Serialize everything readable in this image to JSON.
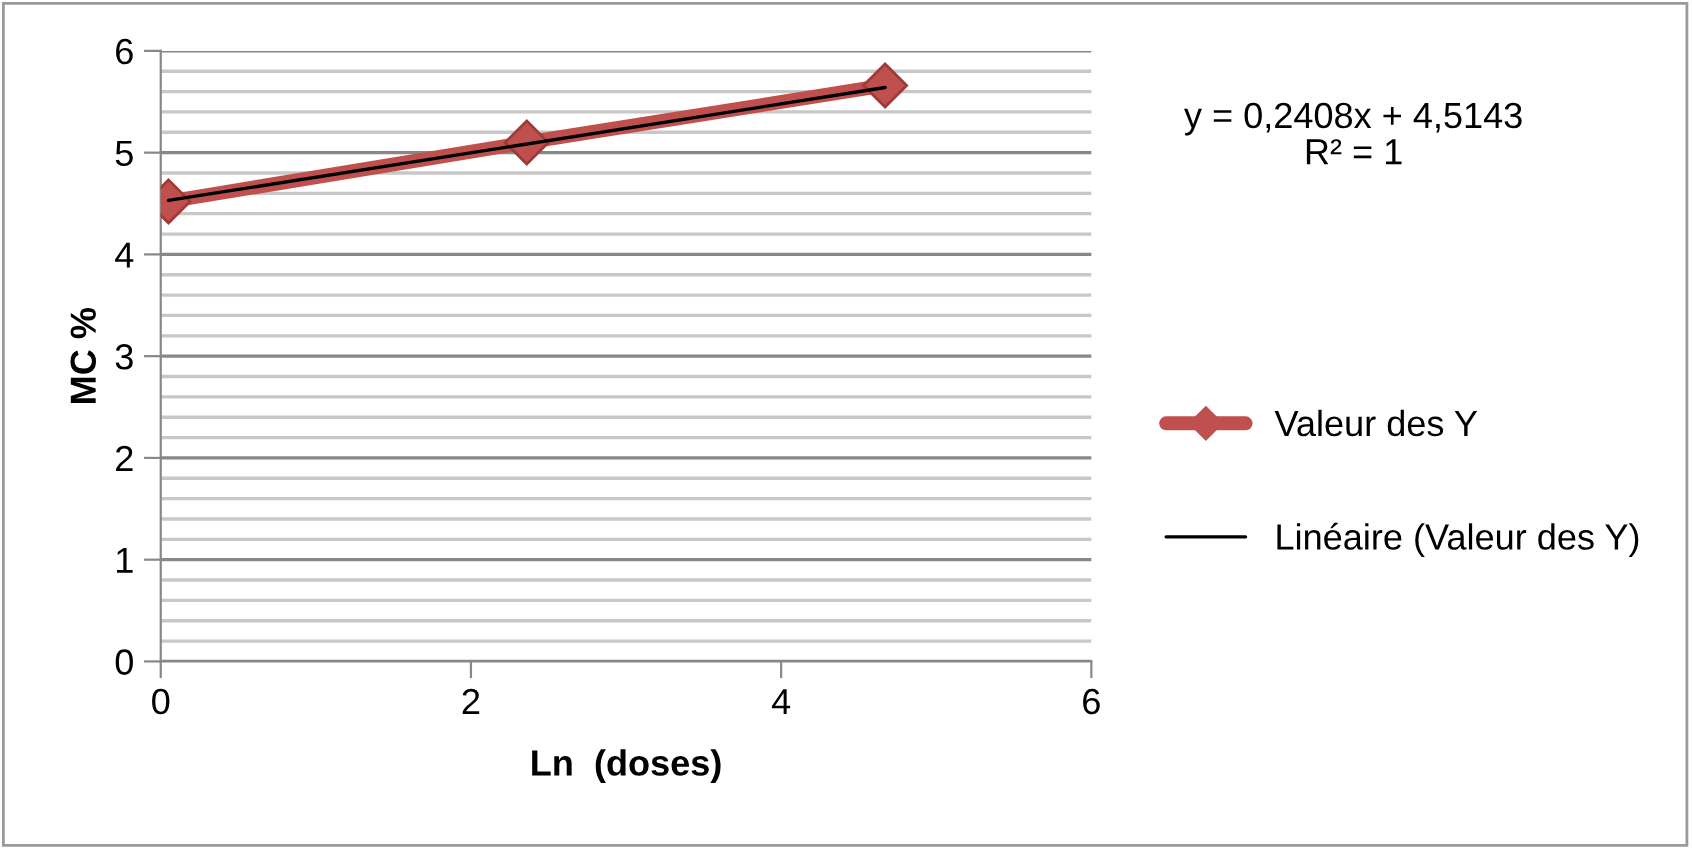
{
  "chart_data": {
    "type": "line",
    "xlabel": "Ln  (doses)",
    "ylabel": "MC %",
    "xlim": [
      0,
      6
    ],
    "xticks": [
      0,
      2,
      4,
      6
    ],
    "ylim": [
      0,
      6
    ],
    "yticks": [
      0,
      {
        "value": 0.2,
        "label": null
      },
      {
        "value": 0.4,
        "label": null
      },
      {
        "value": 0.6,
        "label": null
      },
      {
        "value": 0.8,
        "label": null
      },
      1,
      {
        "value": 1.2,
        "label": null
      },
      {
        "value": 1.4,
        "label": null
      },
      {
        "value": 1.6,
        "label": null
      },
      {
        "value": 1.8,
        "label": null
      },
      2,
      {
        "value": 2.2,
        "label": null
      },
      {
        "value": 2.4,
        "label": null
      },
      {
        "value": 2.6,
        "label": null
      },
      {
        "value": 2.8,
        "label": null
      },
      3,
      {
        "value": 3.2,
        "label": null
      },
      {
        "value": 3.4,
        "label": null
      },
      {
        "value": 3.6,
        "label": null
      },
      {
        "value": 3.8,
        "label": null
      },
      4,
      {
        "value": 4.2,
        "label": null
      },
      {
        "value": 4.4,
        "label": null
      },
      {
        "value": 4.6,
        "label": null
      },
      {
        "value": 4.8,
        "label": null
      },
      5,
      {
        "value": 5.2,
        "label": null
      },
      {
        "value": 5.4,
        "label": null
      },
      {
        "value": 5.6,
        "label": null
      },
      {
        "value": 5.8,
        "label": null
      },
      6
    ],
    "grid": "y",
    "legend": "right",
    "annotations": [
      "y = 0,2408x + 4,5143\nR² = 1"
    ],
    "series": [
      {
        "name": "Valeur des Y",
        "color": "#c0504d",
        "marker": "diamond",
        "x": [
          0.05,
          2.36,
          4.67
        ],
        "values": [
          4.52,
          5.1,
          5.66
        ]
      },
      {
        "name": "Linéaire (Valeur des Y)",
        "color": "#000000",
        "marker": "none",
        "x": [
          0.05,
          4.67
        ],
        "values": [
          4.53,
          5.64
        ]
      }
    ]
  }
}
